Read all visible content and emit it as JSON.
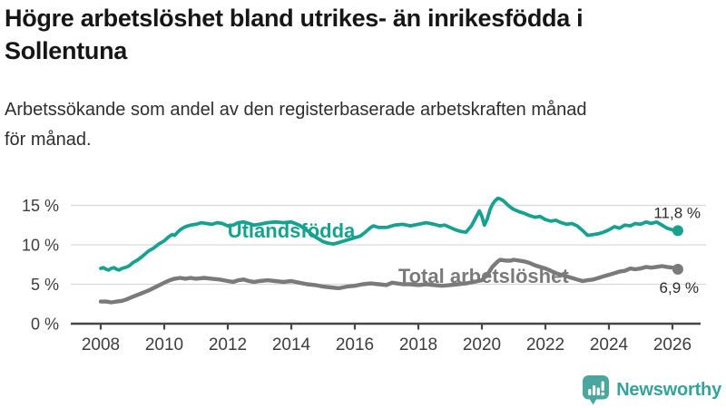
{
  "header": {
    "title_line1": "Högre arbetslöshet bland utrikes- än inrikesfödda i",
    "title_line2": "Sollentuna",
    "subtitle_line1": "Arbetssökande som andel av den registerbaserade arbetskraften månad",
    "subtitle_line2": "för månad."
  },
  "footer": {
    "brand_name": "Newsworthy",
    "logo_icon": "bar-chart-speech-bubble"
  },
  "colors": {
    "accent_teal": "#16A191",
    "series_gray": "#7A7A7A",
    "logo_teal": "#4AA69F",
    "grid": "#D9D9D9",
    "axis": "#474747",
    "axis_text": "#3D3D3D",
    "annotation_text": "#2B2B2B"
  },
  "chart_data": {
    "type": "line",
    "unit": "%",
    "grid": "horizontal",
    "x_axis": {
      "tick_values": [
        2008,
        2010,
        2012,
        2014,
        2016,
        2018,
        2020,
        2022,
        2024,
        2026
      ],
      "tick_labels": [
        "2008",
        "2010",
        "2012",
        "2014",
        "2016",
        "2018",
        "2020",
        "2022",
        "2024",
        "2026"
      ],
      "range": [
        2008,
        2026.2
      ]
    },
    "y_axis": {
      "ticks": [
        {
          "value": 0,
          "label": "0 %"
        },
        {
          "value": 5,
          "label": "5 %"
        },
        {
          "value": 10,
          "label": "10 %"
        },
        {
          "value": 15,
          "label": "15 %"
        }
      ],
      "range": [
        0,
        16.5
      ]
    },
    "series": [
      {
        "id": "utlandsfodda",
        "name": "Utlandsfödda",
        "color": "#16A191",
        "line_width": 3.8,
        "label_anchor": {
          "year": 2014.0,
          "pct": 10.9
        },
        "end_value": 11.8,
        "end_label": "11,8 %",
        "end_label_position": "above",
        "points": [
          [
            2008.0,
            7.0
          ],
          [
            2008.08,
            7.1
          ],
          [
            2008.17,
            6.9
          ],
          [
            2008.25,
            6.8
          ],
          [
            2008.33,
            7.0
          ],
          [
            2008.42,
            7.1
          ],
          [
            2008.5,
            6.9
          ],
          [
            2008.58,
            6.8
          ],
          [
            2008.67,
            7.0
          ],
          [
            2008.75,
            7.1
          ],
          [
            2008.83,
            7.2
          ],
          [
            2008.92,
            7.4
          ],
          [
            2009.0,
            7.7
          ],
          [
            2009.17,
            8.1
          ],
          [
            2009.33,
            8.6
          ],
          [
            2009.5,
            9.2
          ],
          [
            2009.67,
            9.6
          ],
          [
            2009.83,
            10.1
          ],
          [
            2010.0,
            10.5
          ],
          [
            2010.08,
            10.8
          ],
          [
            2010.17,
            11.1
          ],
          [
            2010.25,
            11.3
          ],
          [
            2010.33,
            11.2
          ],
          [
            2010.42,
            11.6
          ],
          [
            2010.5,
            11.9
          ],
          [
            2010.58,
            12.1
          ],
          [
            2010.67,
            12.3
          ],
          [
            2010.83,
            12.5
          ],
          [
            2011.0,
            12.6
          ],
          [
            2011.17,
            12.8
          ],
          [
            2011.33,
            12.7
          ],
          [
            2011.5,
            12.6
          ],
          [
            2011.67,
            12.8
          ],
          [
            2011.83,
            12.7
          ],
          [
            2012.0,
            12.4
          ],
          [
            2012.17,
            12.5
          ],
          [
            2012.33,
            12.8
          ],
          [
            2012.5,
            12.9
          ],
          [
            2012.67,
            12.7
          ],
          [
            2012.83,
            12.5
          ],
          [
            2013.0,
            12.6
          ],
          [
            2013.25,
            12.8
          ],
          [
            2013.5,
            12.9
          ],
          [
            2013.75,
            12.8
          ],
          [
            2014.0,
            12.9
          ],
          [
            2014.25,
            12.5
          ],
          [
            2014.5,
            11.8
          ],
          [
            2014.75,
            11.0
          ],
          [
            2015.0,
            10.4
          ],
          [
            2015.17,
            10.2
          ],
          [
            2015.33,
            10.1
          ],
          [
            2015.5,
            10.3
          ],
          [
            2015.75,
            10.6
          ],
          [
            2016.0,
            10.9
          ],
          [
            2016.17,
            11.1
          ],
          [
            2016.33,
            11.6
          ],
          [
            2016.5,
            12.2
          ],
          [
            2016.58,
            12.4
          ],
          [
            2016.75,
            12.2
          ],
          [
            2017.0,
            12.2
          ],
          [
            2017.25,
            12.5
          ],
          [
            2017.5,
            12.6
          ],
          [
            2017.75,
            12.4
          ],
          [
            2018.0,
            12.6
          ],
          [
            2018.25,
            12.8
          ],
          [
            2018.5,
            12.6
          ],
          [
            2018.67,
            12.4
          ],
          [
            2018.83,
            12.5
          ],
          [
            2019.0,
            12.2
          ],
          [
            2019.17,
            11.9
          ],
          [
            2019.33,
            11.7
          ],
          [
            2019.5,
            11.6
          ],
          [
            2019.67,
            12.4
          ],
          [
            2019.83,
            13.6
          ],
          [
            2019.92,
            14.3
          ],
          [
            2020.0,
            13.6
          ],
          [
            2020.08,
            12.5
          ],
          [
            2020.17,
            13.3
          ],
          [
            2020.25,
            14.4
          ],
          [
            2020.33,
            15.1
          ],
          [
            2020.42,
            15.6
          ],
          [
            2020.5,
            15.9
          ],
          [
            2020.58,
            15.8
          ],
          [
            2020.67,
            15.6
          ],
          [
            2020.75,
            15.3
          ],
          [
            2020.83,
            15.0
          ],
          [
            2020.92,
            14.7
          ],
          [
            2021.0,
            14.5
          ],
          [
            2021.17,
            14.2
          ],
          [
            2021.33,
            14.0
          ],
          [
            2021.5,
            13.7
          ],
          [
            2021.67,
            13.5
          ],
          [
            2021.83,
            13.6
          ],
          [
            2022.0,
            13.2
          ],
          [
            2022.17,
            13.0
          ],
          [
            2022.33,
            13.1
          ],
          [
            2022.5,
            12.8
          ],
          [
            2022.67,
            12.6
          ],
          [
            2022.83,
            12.7
          ],
          [
            2023.0,
            12.4
          ],
          [
            2023.17,
            11.8
          ],
          [
            2023.33,
            11.2
          ],
          [
            2023.5,
            11.3
          ],
          [
            2023.67,
            11.4
          ],
          [
            2023.83,
            11.6
          ],
          [
            2024.0,
            11.9
          ],
          [
            2024.17,
            12.3
          ],
          [
            2024.33,
            12.1
          ],
          [
            2024.5,
            12.5
          ],
          [
            2024.67,
            12.4
          ],
          [
            2024.83,
            12.7
          ],
          [
            2025.0,
            12.6
          ],
          [
            2025.17,
            12.9
          ],
          [
            2025.33,
            12.7
          ],
          [
            2025.5,
            12.9
          ],
          [
            2025.67,
            12.5
          ],
          [
            2025.83,
            12.1
          ],
          [
            2026.0,
            11.9
          ],
          [
            2026.17,
            11.8
          ]
        ]
      },
      {
        "id": "total-arbetsloshet",
        "name": "Total arbetslöshet",
        "color": "#7A7A7A",
        "line_width": 4.4,
        "label_anchor": {
          "year": 2020.05,
          "pct": 5.15
        },
        "end_value": 6.9,
        "end_label": "6,9 %",
        "end_label_position": "below",
        "points": [
          [
            2008.0,
            2.8
          ],
          [
            2008.17,
            2.8
          ],
          [
            2008.33,
            2.7
          ],
          [
            2008.5,
            2.8
          ],
          [
            2008.67,
            2.9
          ],
          [
            2008.83,
            3.1
          ],
          [
            2009.0,
            3.4
          ],
          [
            2009.25,
            3.8
          ],
          [
            2009.5,
            4.2
          ],
          [
            2009.75,
            4.7
          ],
          [
            2010.0,
            5.2
          ],
          [
            2010.17,
            5.5
          ],
          [
            2010.33,
            5.7
          ],
          [
            2010.5,
            5.8
          ],
          [
            2010.67,
            5.7
          ],
          [
            2010.83,
            5.8
          ],
          [
            2011.0,
            5.7
          ],
          [
            2011.25,
            5.8
          ],
          [
            2011.5,
            5.7
          ],
          [
            2011.75,
            5.6
          ],
          [
            2012.0,
            5.4
          ],
          [
            2012.17,
            5.3
          ],
          [
            2012.33,
            5.5
          ],
          [
            2012.5,
            5.6
          ],
          [
            2012.67,
            5.4
          ],
          [
            2012.83,
            5.3
          ],
          [
            2013.0,
            5.4
          ],
          [
            2013.25,
            5.5
          ],
          [
            2013.5,
            5.4
          ],
          [
            2013.75,
            5.3
          ],
          [
            2014.0,
            5.4
          ],
          [
            2014.25,
            5.2
          ],
          [
            2014.5,
            5.0
          ],
          [
            2014.75,
            4.9
          ],
          [
            2015.0,
            4.7
          ],
          [
            2015.25,
            4.6
          ],
          [
            2015.5,
            4.5
          ],
          [
            2015.75,
            4.7
          ],
          [
            2016.0,
            4.8
          ],
          [
            2016.25,
            5.0
          ],
          [
            2016.5,
            5.1
          ],
          [
            2016.75,
            5.0
          ],
          [
            2017.0,
            4.9
          ],
          [
            2017.17,
            5.2
          ],
          [
            2017.33,
            5.1
          ],
          [
            2017.5,
            5.0
          ],
          [
            2017.75,
            5.0
          ],
          [
            2018.0,
            4.9
          ],
          [
            2018.25,
            5.0
          ],
          [
            2018.5,
            4.9
          ],
          [
            2018.75,
            4.8
          ],
          [
            2019.0,
            4.9
          ],
          [
            2019.25,
            5.0
          ],
          [
            2019.5,
            5.1
          ],
          [
            2019.75,
            5.3
          ],
          [
            2020.0,
            5.5
          ],
          [
            2020.17,
            6.2
          ],
          [
            2020.33,
            7.2
          ],
          [
            2020.5,
            7.9
          ],
          [
            2020.58,
            8.1
          ],
          [
            2020.75,
            8.0
          ],
          [
            2020.92,
            8.0
          ],
          [
            2021.0,
            8.1
          ],
          [
            2021.17,
            8.0
          ],
          [
            2021.33,
            7.9
          ],
          [
            2021.5,
            7.7
          ],
          [
            2021.67,
            7.4
          ],
          [
            2021.83,
            7.2
          ],
          [
            2022.0,
            7.0
          ],
          [
            2022.17,
            6.7
          ],
          [
            2022.33,
            6.4
          ],
          [
            2022.5,
            6.2
          ],
          [
            2022.67,
            6.0
          ],
          [
            2022.83,
            5.8
          ],
          [
            2023.0,
            5.6
          ],
          [
            2023.17,
            5.4
          ],
          [
            2023.33,
            5.5
          ],
          [
            2023.5,
            5.6
          ],
          [
            2023.67,
            5.8
          ],
          [
            2023.83,
            6.0
          ],
          [
            2024.0,
            6.2
          ],
          [
            2024.17,
            6.4
          ],
          [
            2024.33,
            6.6
          ],
          [
            2024.5,
            6.7
          ],
          [
            2024.67,
            7.0
          ],
          [
            2024.83,
            6.9
          ],
          [
            2025.0,
            7.0
          ],
          [
            2025.17,
            7.2
          ],
          [
            2025.33,
            7.1
          ],
          [
            2025.5,
            7.2
          ],
          [
            2025.67,
            7.3
          ],
          [
            2025.83,
            7.2
          ],
          [
            2026.0,
            7.1
          ],
          [
            2026.17,
            6.9
          ]
        ]
      }
    ]
  }
}
